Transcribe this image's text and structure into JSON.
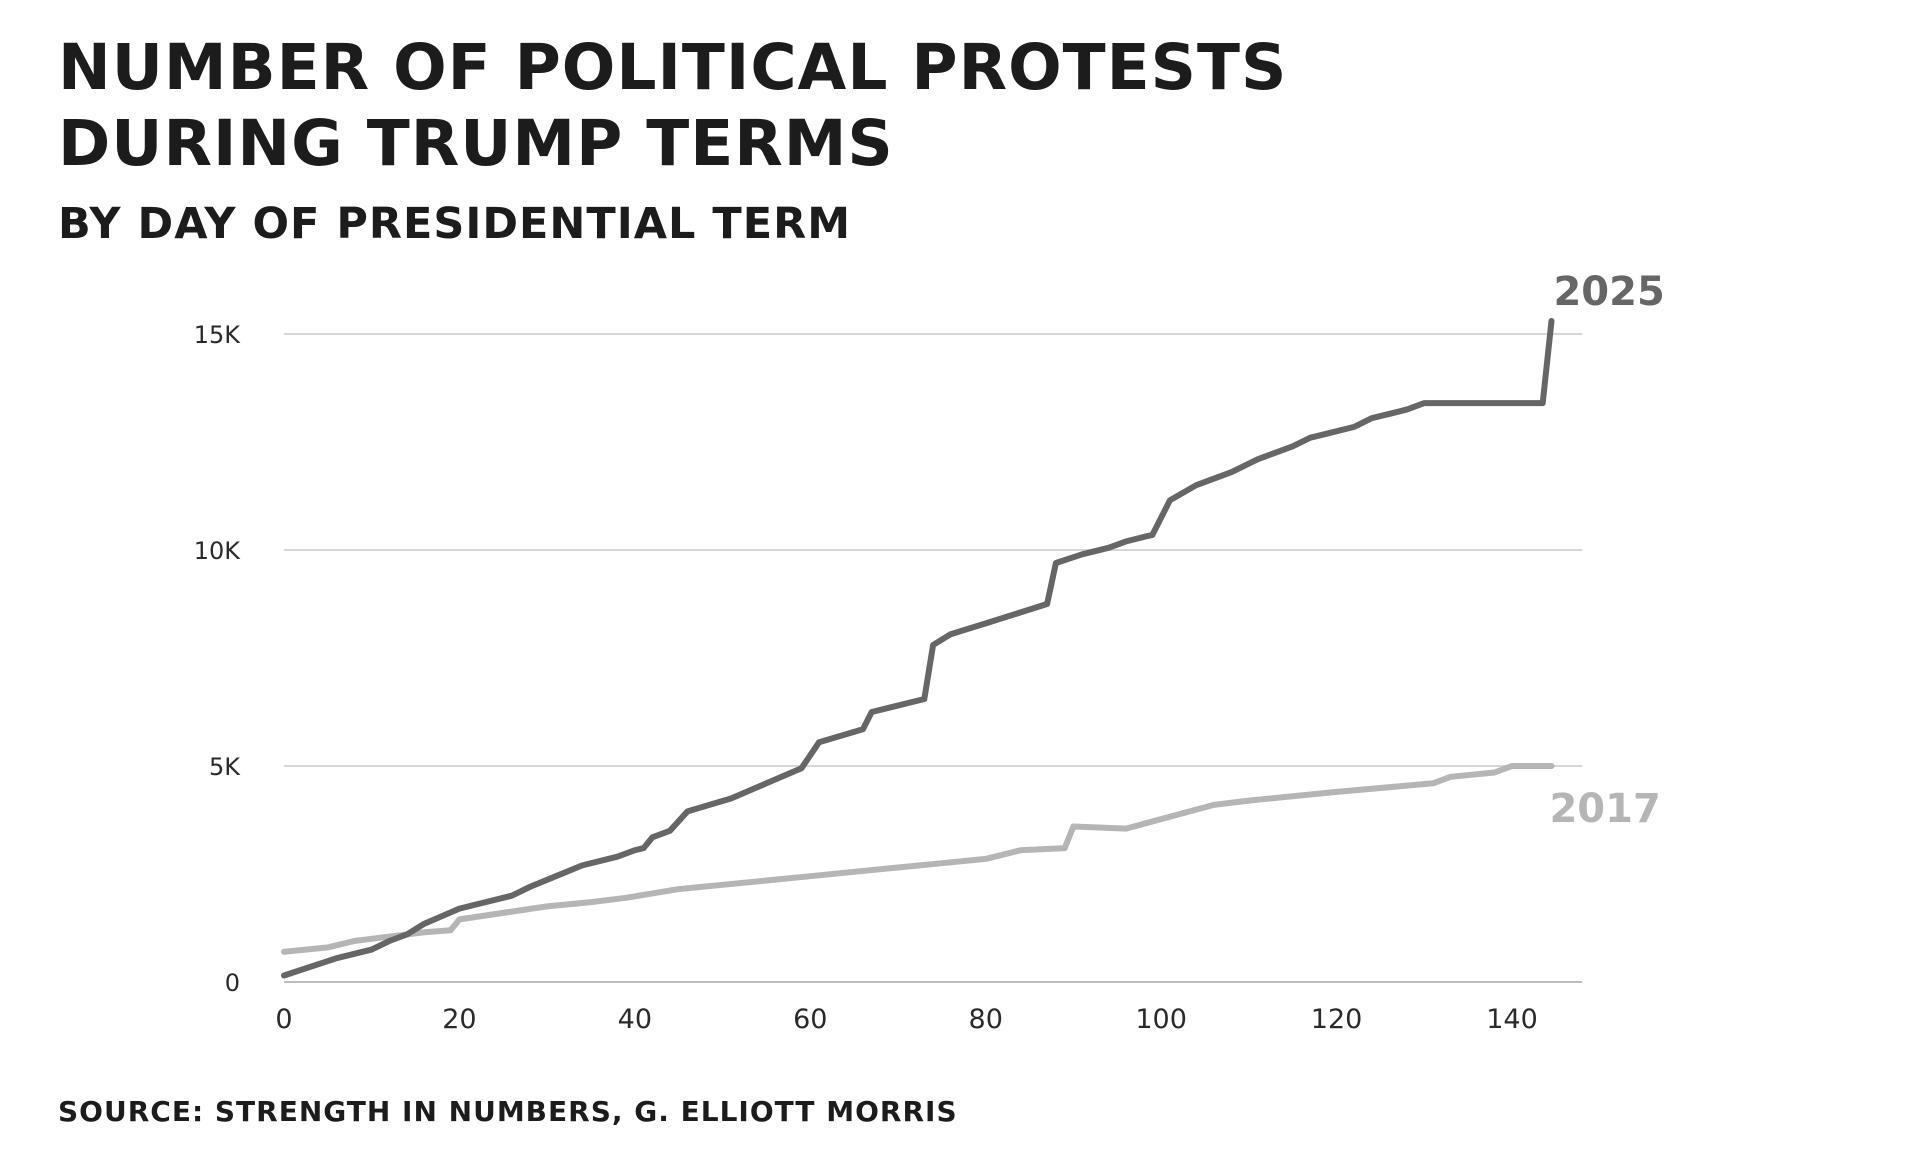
{
  "title": "Number of political protests during Trump terms",
  "subtitle": "By day of presidential term",
  "source": "Source: Strength in Numbers, G. Elliott Morris",
  "chart_data": {
    "type": "line",
    "title": "Number of political protests during Trump terms",
    "subtitle": "By day of presidential term",
    "xlabel": "",
    "ylabel": "",
    "xlim": [
      0,
      147
    ],
    "ylim": [
      0,
      15000
    ],
    "x_ticks": [
      0,
      20,
      40,
      60,
      80,
      100,
      120,
      140
    ],
    "y_ticks": [
      0,
      5000,
      10000,
      15000
    ],
    "y_tick_labels": [
      "0",
      "5K",
      "10K",
      "15K"
    ],
    "grid": "horizontal",
    "legend": "direct labels at line ends",
    "series": [
      {
        "name": "2025",
        "color": "#666666",
        "x": [
          0,
          6,
          10,
          12,
          14,
          16,
          20,
          23,
          26,
          28,
          31,
          34,
          38,
          40,
          41,
          42,
          44,
          46,
          51,
          55,
          59,
          61,
          66,
          67,
          73,
          74,
          76,
          80,
          87,
          88,
          91,
          94,
          96,
          98,
          99,
          101,
          104,
          108,
          111,
          115,
          117,
          119,
          122,
          124,
          128,
          130,
          136,
          140,
          143,
          143.5,
          144.5
        ],
        "y": [
          150,
          550,
          750,
          950,
          1100,
          1350,
          1700,
          1850,
          2000,
          2200,
          2450,
          2700,
          2900,
          3050,
          3100,
          3350,
          3500,
          3950,
          4250,
          4600,
          4950,
          5550,
          5850,
          6250,
          6550,
          7800,
          8050,
          8300,
          8750,
          9700,
          9900,
          10050,
          10200,
          10300,
          10350,
          11150,
          11500,
          11800,
          12100,
          12400,
          12600,
          12700,
          12850,
          13050,
          13250,
          13400,
          13400,
          13400,
          13400,
          13400,
          15300
        ]
      },
      {
        "name": "2017",
        "color": "#b5b5b5",
        "x": [
          0,
          5,
          8,
          12,
          16,
          19,
          20,
          25,
          30,
          35,
          39,
          42,
          45,
          50,
          55,
          60,
          65,
          70,
          75,
          80,
          82,
          84,
          89,
          90,
          96,
          106,
          110,
          120,
          131,
          133,
          138,
          140,
          144.5
        ],
        "y": [
          700,
          800,
          950,
          1050,
          1150,
          1200,
          1450,
          1600,
          1750,
          1850,
          1950,
          2050,
          2150,
          2250,
          2350,
          2450,
          2550,
          2650,
          2750,
          2850,
          2950,
          3050,
          3100,
          3600,
          3550,
          4100,
          4200,
          4400,
          4600,
          4750,
          4850,
          5000,
          5000
        ]
      }
    ]
  }
}
